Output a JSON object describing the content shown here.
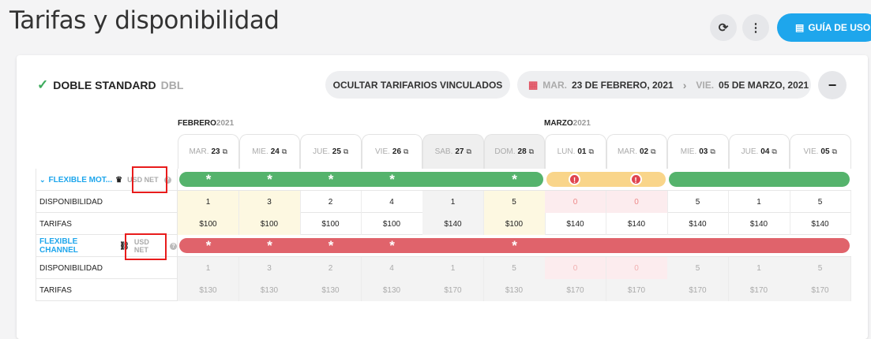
{
  "header": {
    "title": "Tarifas y disponibilidad",
    "guide_label": "GUÍA DE USO",
    "refresh_icon": "refresh-icon",
    "more_icon": "more-vertical-icon"
  },
  "room": {
    "name": "DOBLE STANDARD",
    "code": "DBL",
    "hide_linked_label": "OCULTAR TARIFARIOS VINCULADOS",
    "date_from_dow": "MAR.",
    "date_from": "23 DE FEBRERO, 2021",
    "date_to_dow": "VIE.",
    "date_to": "05 DE MARZO, 2021",
    "collapse_label": "−"
  },
  "months": [
    {
      "name": "FEBRERO",
      "year": "2021"
    },
    {
      "name": "MARZO",
      "year": "2021"
    }
  ],
  "days": [
    {
      "dow": "MAR.",
      "num": "23",
      "weekend": false
    },
    {
      "dow": "MIE.",
      "num": "24",
      "weekend": false
    },
    {
      "dow": "JUE.",
      "num": "25",
      "weekend": false
    },
    {
      "dow": "VIE.",
      "num": "26",
      "weekend": false
    },
    {
      "dow": "SAB.",
      "num": "27",
      "weekend": true
    },
    {
      "dow": "DOM.",
      "num": "28",
      "weekend": true
    },
    {
      "dow": "LUN.",
      "num": "01",
      "weekend": false
    },
    {
      "dow": "MAR.",
      "num": "02",
      "weekend": false
    },
    {
      "dow": "MIE.",
      "num": "03",
      "weekend": false
    },
    {
      "dow": "JUE.",
      "num": "04",
      "weekend": false
    },
    {
      "dow": "VIE.",
      "num": "05",
      "weekend": false
    }
  ],
  "rates": [
    {
      "name": "FLEXIBLE MOT...",
      "currency": "USD NET",
      "availability_label": "DISPONIBILIDAD",
      "price_label": "TARIFAS",
      "availability": [
        "1",
        "3",
        "2",
        "4",
        "1",
        "5",
        "0",
        "0",
        "5",
        "1",
        "5"
      ],
      "prices": [
        "$100",
        "$100",
        "$100",
        "$100",
        "$140",
        "$100",
        "$140",
        "$140",
        "$140",
        "$140",
        "$140"
      ]
    },
    {
      "name": "FLEXIBLE CHANNEL",
      "currency": "USD NET",
      "availability_label": "DISPONIBILIDAD",
      "price_label": "TARIFAS",
      "availability": [
        "1",
        "3",
        "2",
        "4",
        "1",
        "5",
        "0",
        "0",
        "5",
        "1",
        "5"
      ],
      "prices": [
        "$130",
        "$130",
        "$130",
        "$130",
        "$170",
        "$130",
        "$170",
        "$170",
        "$170",
        "$170",
        "$170"
      ]
    }
  ],
  "colors": {
    "accent": "#1ea6ec",
    "open": "#55b36c",
    "warning": "#f9d58a",
    "closed": "#e0636b",
    "highlight": "#e81c1c"
  }
}
